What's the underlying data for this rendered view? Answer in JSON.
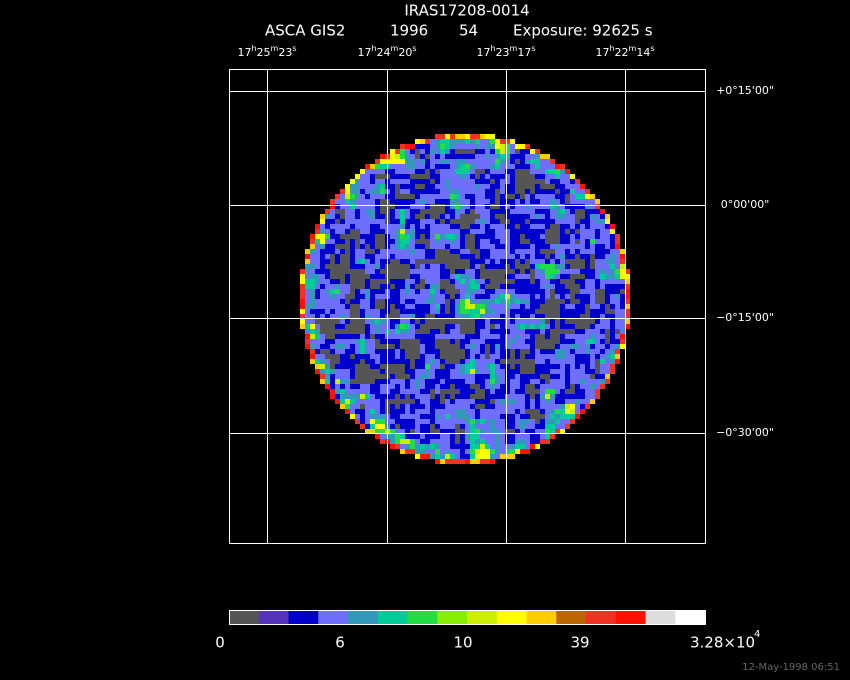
{
  "header": {
    "title": "IRAS17208-0014",
    "instrument": "ASCA GIS2",
    "year": "1996",
    "sequence": "54",
    "exposure": "Exposure: 92625 s"
  },
  "ra_labels": [
    "17h25m23s",
    "17h24m20s",
    "17h23m17s",
    "17h22m14s"
  ],
  "dec_labels": [
    "+0°15'00\"",
    "0°00'00\"",
    "−0°15'00\"",
    "−0°30'00\""
  ],
  "colorbar": {
    "colors": [
      "#555555",
      "#5533bb",
      "#0000cc",
      "#6f6fff",
      "#3399bb",
      "#00cc99",
      "#22dd44",
      "#88ee00",
      "#ccee00",
      "#ffff00",
      "#ffcc00",
      "#bb6600",
      "#ee3322",
      "#ff1100",
      "#dddddd",
      "#ffffff"
    ],
    "labels": [
      "0",
      "6",
      "10",
      "39"
    ],
    "max_mantissa": "3.28×10",
    "max_exponent": "4"
  },
  "footer": {
    "timestamp": "12-May-1998 06:51"
  }
}
